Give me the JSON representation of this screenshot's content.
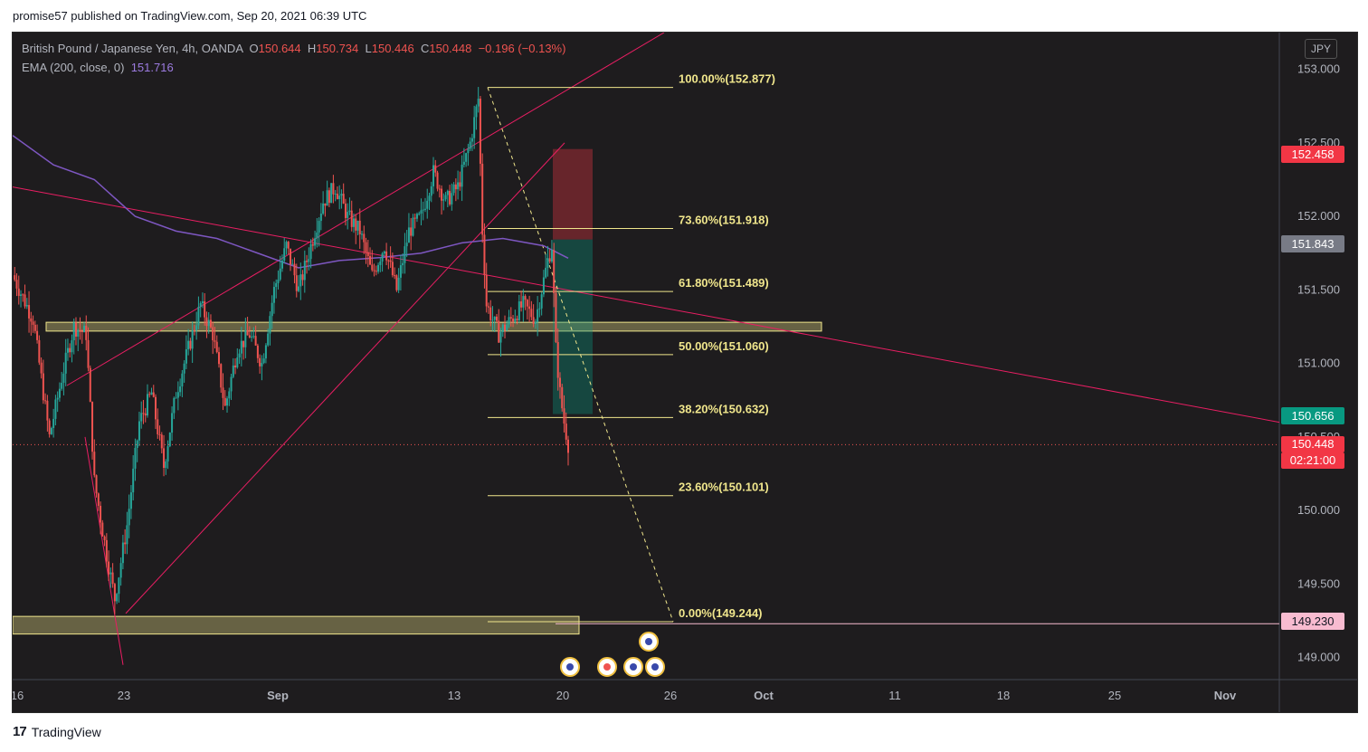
{
  "header": {
    "publish_text": "promise57 published on TradingView.com, Sep 20, 2021 06:39 UTC"
  },
  "legend": {
    "symbol": "British Pound / Japanese Yen, 4h, OANDA",
    "o_label": "O",
    "o": "150.644",
    "h_label": "H",
    "h": "150.734",
    "l_label": "L",
    "l": "150.446",
    "c_label": "C",
    "c": "150.448",
    "change": "−0.196 (−0.13%)",
    "ema_label": "EMA (200, close, 0)",
    "ema_value": "151.716"
  },
  "currency_badge": "JPY",
  "price_tags": {
    "stop": "152.458",
    "ema": "151.843",
    "target": "150.656",
    "last": "150.448",
    "countdown": "02:21:00",
    "support": "149.230"
  },
  "footer": {
    "brand": "TradingView"
  },
  "colors": {
    "background": "#1e1c1e",
    "up": "#26a69a",
    "down": "#ef5350",
    "ema": "#7e57c2",
    "trendline": "#e91e63",
    "fib": "#f0e68c"
  },
  "chart_data": {
    "type": "candlestick",
    "instrument": "British Pound / Japanese Yen, 4h, OANDA",
    "ylim": [
      148.85,
      153.25
    ],
    "y_ticks": [
      "153.000",
      "152.500",
      "152.000",
      "151.500",
      "151.000",
      "150.500",
      "150.000",
      "149.500",
      "149.000"
    ],
    "x_ticks": [
      "16",
      "23",
      "Sep",
      "13",
      "20",
      "26",
      "Oct",
      "11",
      "18",
      "25",
      "Nov"
    ],
    "fibonacci": [
      {
        "label": "100.00%(152.877)",
        "price": 152.877
      },
      {
        "label": "73.60%(151.918)",
        "price": 151.918
      },
      {
        "label": "61.80%(151.489)",
        "price": 151.489
      },
      {
        "label": "50.00%(151.060)",
        "price": 151.06
      },
      {
        "label": "38.20%(150.632)",
        "price": 150.632
      },
      {
        "label": "23.60%(150.101)",
        "price": 150.101
      },
      {
        "label": "0.00%(149.244)",
        "price": 149.244
      }
    ],
    "close_path": [
      {
        "t": 0,
        "p": 151.6
      },
      {
        "t": 10,
        "p": 151.3
      },
      {
        "t": 18,
        "p": 150.5
      },
      {
        "t": 24,
        "p": 150.9
      },
      {
        "t": 30,
        "p": 151.25
      },
      {
        "t": 36,
        "p": 151.2
      },
      {
        "t": 40,
        "p": 150.2
      },
      {
        "t": 46,
        "p": 149.7
      },
      {
        "t": 50,
        "p": 149.4
      },
      {
        "t": 56,
        "p": 149.9
      },
      {
        "t": 62,
        "p": 150.6
      },
      {
        "t": 68,
        "p": 150.8
      },
      {
        "t": 74,
        "p": 150.3
      },
      {
        "t": 80,
        "p": 150.8
      },
      {
        "t": 86,
        "p": 151.1
      },
      {
        "t": 92,
        "p": 151.4
      },
      {
        "t": 98,
        "p": 151.2
      },
      {
        "t": 104,
        "p": 150.7
      },
      {
        "t": 110,
        "p": 151.1
      },
      {
        "t": 116,
        "p": 151.2
      },
      {
        "t": 122,
        "p": 151.0
      },
      {
        "t": 128,
        "p": 151.5
      },
      {
        "t": 134,
        "p": 151.8
      },
      {
        "t": 140,
        "p": 151.5
      },
      {
        "t": 146,
        "p": 151.8
      },
      {
        "t": 152,
        "p": 152.1
      },
      {
        "t": 158,
        "p": 152.2
      },
      {
        "t": 164,
        "p": 152.0
      },
      {
        "t": 170,
        "p": 151.9
      },
      {
        "t": 176,
        "p": 151.6
      },
      {
        "t": 182,
        "p": 151.8
      },
      {
        "t": 188,
        "p": 151.5
      },
      {
        "t": 194,
        "p": 151.9
      },
      {
        "t": 200,
        "p": 152.0
      },
      {
        "t": 206,
        "p": 152.3
      },
      {
        "t": 212,
        "p": 152.1
      },
      {
        "t": 218,
        "p": 152.2
      },
      {
        "t": 224,
        "p": 152.5
      },
      {
        "t": 228,
        "p": 152.8
      },
      {
        "t": 230,
        "p": 151.9
      },
      {
        "t": 232,
        "p": 151.4
      },
      {
        "t": 238,
        "p": 151.2
      },
      {
        "t": 244,
        "p": 151.3
      },
      {
        "t": 250,
        "p": 151.4
      },
      {
        "t": 256,
        "p": 151.3
      },
      {
        "t": 262,
        "p": 151.7
      },
      {
        "t": 264,
        "p": 151.8
      },
      {
        "t": 266,
        "p": 151.1
      },
      {
        "t": 268,
        "p": 150.8
      },
      {
        "t": 270,
        "p": 150.6
      },
      {
        "t": 272,
        "p": 150.45
      }
    ],
    "ema200": [
      {
        "t": 0,
        "p": 152.55
      },
      {
        "t": 20,
        "p": 152.35
      },
      {
        "t": 40,
        "p": 152.25
      },
      {
        "t": 60,
        "p": 152.0
      },
      {
        "t": 80,
        "p": 151.9
      },
      {
        "t": 100,
        "p": 151.85
      },
      {
        "t": 120,
        "p": 151.75
      },
      {
        "t": 140,
        "p": 151.65
      },
      {
        "t": 160,
        "p": 151.7
      },
      {
        "t": 180,
        "p": 151.72
      },
      {
        "t": 200,
        "p": 151.75
      },
      {
        "t": 220,
        "p": 151.82
      },
      {
        "t": 240,
        "p": 151.85
      },
      {
        "t": 260,
        "p": 151.8
      },
      {
        "t": 272,
        "p": 151.716
      }
    ],
    "support_zone_1": [
      151.22,
      151.28
    ],
    "support_zone_2": [
      149.16,
      149.28
    ],
    "position": {
      "stop": 152.458,
      "entry": 151.843,
      "target": 150.656
    }
  }
}
